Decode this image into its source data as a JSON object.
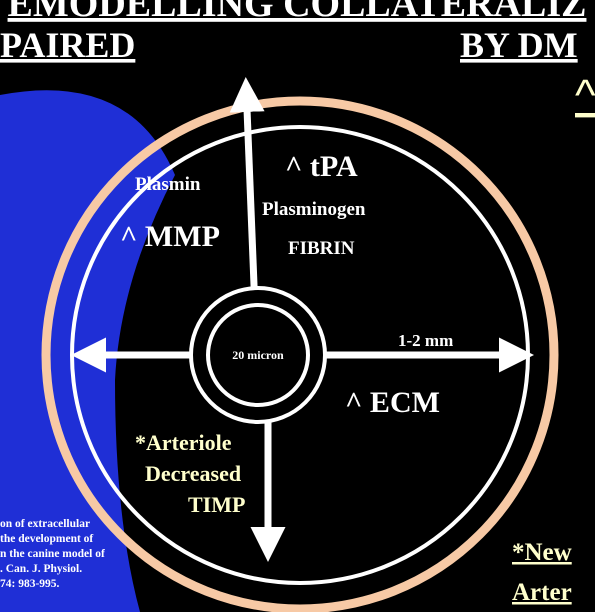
{
  "slide": {
    "title_line1": "EMODELLING COLLATERALIZ",
    "title_line2_left": "PAIRED",
    "title_line2_right": "BY DM",
    "caret_top_right": "^",
    "colors": {
      "background": "#000000",
      "blue_swoosh": "#1f2fd6",
      "outer_ring": "#f7c9a5",
      "lines": "#ffffff",
      "highlight_text": "#ffffcc"
    }
  },
  "diagram": {
    "labels": {
      "tpa": "^ tPA",
      "plasmin": "Plasmin",
      "plasminogen": "Plasminogen",
      "mmp": "^ MMP",
      "fibrin": "FIBRIN",
      "center": "20 micron",
      "size": "1-2 mm",
      "ecm": "^ ECM",
      "arteriole": "*Arteriole",
      "decreased": "Decreased",
      "timp": "TIMP"
    }
  },
  "reference": {
    "lines": [
      "on of extracellular",
      "the development of",
      "n the canine model of",
      ". Can. J. Physiol.",
      "74: 983-995."
    ]
  },
  "footer": {
    "line1": "*New",
    "line2": "Arter"
  }
}
